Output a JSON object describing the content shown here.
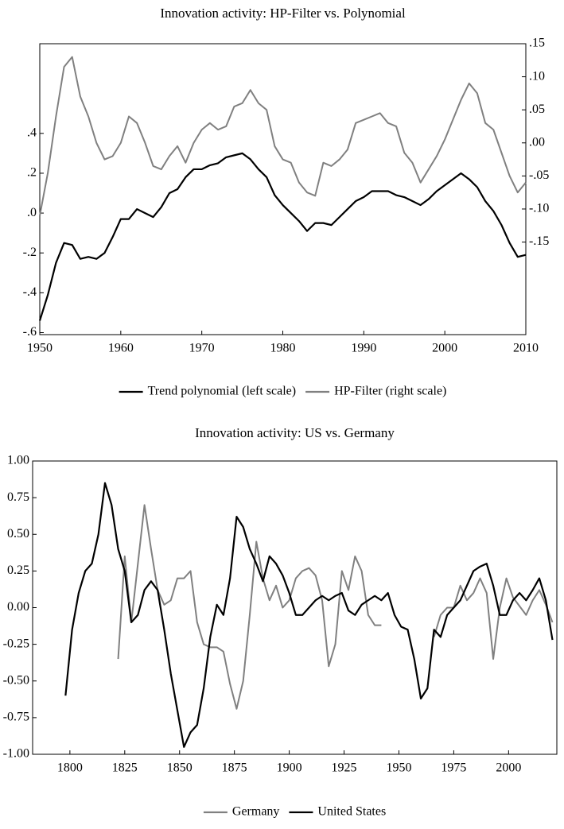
{
  "chart_data": [
    {
      "type": "line",
      "title": "Innovation activity: HP-Filter vs. Polynomial",
      "x": [
        1950,
        1951,
        1952,
        1953,
        1954,
        1955,
        1956,
        1957,
        1958,
        1959,
        1960,
        1961,
        1962,
        1963,
        1964,
        1965,
        1966,
        1967,
        1968,
        1969,
        1970,
        1971,
        1972,
        1973,
        1974,
        1975,
        1976,
        1977,
        1978,
        1979,
        1980,
        1981,
        1982,
        1983,
        1984,
        1985,
        1986,
        1987,
        1988,
        1989,
        1990,
        1991,
        1992,
        1993,
        1994,
        1995,
        1996,
        1997,
        1998,
        1999,
        2000,
        2001,
        2002,
        2003,
        2004,
        2005,
        2006,
        2007,
        2008,
        2009,
        2010
      ],
      "xlim": [
        1950,
        2010
      ],
      "xticks": [
        1950,
        1960,
        1970,
        1980,
        1990,
        2000,
        2010
      ],
      "ylim": [
        -0.61,
        0.85
      ],
      "yticks": [
        {
          "value": -0.6,
          "label": "-.6"
        },
        {
          "value": -0.4,
          "label": "-.4"
        },
        {
          "value": -0.2,
          "label": "-.2"
        },
        {
          "value": 0,
          "label": ".0"
        },
        {
          "value": 0.2,
          "label": ".2"
        },
        {
          "value": 0.4,
          "label": ".4"
        }
      ],
      "y2lim": [
        -0.29,
        0.15
      ],
      "y2ticks": [
        {
          "value": -0.15,
          "label": "-.15"
        },
        {
          "value": -0.1,
          "label": "-.10"
        },
        {
          "value": -0.05,
          "label": "-.05"
        },
        {
          "value": 0,
          "label": ".00"
        },
        {
          "value": 0.05,
          "label": ".05"
        },
        {
          "value": 0.1,
          "label": ".10"
        },
        {
          "value": 0.15,
          "label": ".15"
        }
      ],
      "grid": false,
      "legend": "bottom",
      "series": [
        {
          "name": "Trend polynomial (left scale)",
          "color": "#000000",
          "values": [
            -0.54,
            -0.41,
            -0.25,
            -0.15,
            -0.16,
            -0.23,
            -0.22,
            -0.23,
            -0.2,
            -0.12,
            -0.03,
            -0.03,
            0.02,
            0,
            -0.02,
            0.03,
            0.1,
            0.12,
            0.18,
            0.22,
            0.22,
            0.24,
            0.25,
            0.28,
            0.29,
            0.3,
            0.27,
            0.22,
            0.18,
            0.09,
            0.04,
            0,
            -0.04,
            -0.09,
            -0.05,
            -0.05,
            -0.06,
            -0.02,
            0.02,
            0.06,
            0.08,
            0.11,
            0.11,
            0.11,
            0.09,
            0.08,
            0.06,
            0.04,
            0.07,
            0.11,
            0.14,
            0.17,
            0.2,
            0.17,
            0.13,
            0.06,
            0.01,
            -0.06,
            -0.15,
            -0.22,
            -0.21
          ]
        },
        {
          "name": "HP-Filter (right scale)",
          "color": "#808080",
          "axis": "y2",
          "values": [
            -0.11,
            -0.045,
            0.04,
            0.115,
            0.13,
            0.07,
            0.04,
            0,
            -0.025,
            -0.02,
            0,
            0.04,
            0.03,
            0,
            -0.035,
            -0.04,
            -0.02,
            -0.005,
            -0.03,
            0,
            0.02,
            0.03,
            0.02,
            0.025,
            0.055,
            0.06,
            0.08,
            0.06,
            0.05,
            -0.005,
            -0.025,
            -0.03,
            -0.06,
            -0.075,
            -0.08,
            -0.03,
            -0.035,
            -0.025,
            -0.01,
            0.03,
            0.035,
            0.04,
            0.045,
            0.03,
            0.025,
            -0.015,
            -0.03,
            -0.06,
            -0.04,
            -0.02,
            0.005,
            0.035,
            0.065,
            0.09,
            0.075,
            0.03,
            0.02,
            -0.015,
            -0.05,
            -0.075,
            -0.06
          ]
        }
      ]
    },
    {
      "type": "line",
      "title": "Innovation activity: US vs. Germany",
      "x": [
        1798,
        1801,
        1804,
        1807,
        1810,
        1813,
        1816,
        1819,
        1822,
        1825,
        1828,
        1831,
        1834,
        1837,
        1840,
        1843,
        1846,
        1849,
        1852,
        1855,
        1858,
        1861,
        1864,
        1867,
        1870,
        1873,
        1876,
        1879,
        1882,
        1885,
        1888,
        1891,
        1894,
        1897,
        1900,
        1903,
        1906,
        1909,
        1912,
        1915,
        1918,
        1921,
        1924,
        1927,
        1930,
        1933,
        1936,
        1939,
        1942,
        1945,
        1948,
        1951,
        1954,
        1957,
        1960,
        1963,
        1966,
        1969,
        1972,
        1975,
        1978,
        1981,
        1984,
        1987,
        1990,
        1993,
        1996,
        1999,
        2002,
        2005,
        2008,
        2011,
        2014,
        2017,
        2020
      ],
      "xlim": [
        1783,
        2022
      ],
      "xticks": [
        1800,
        1825,
        1850,
        1875,
        1900,
        1925,
        1950,
        1975,
        2000
      ],
      "ylim": [
        -1,
        1
      ],
      "yticks": [
        {
          "value": -1,
          "label": "-1.00"
        },
        {
          "value": -0.75,
          "label": "-0.75"
        },
        {
          "value": -0.5,
          "label": "-0.50"
        },
        {
          "value": -0.25,
          "label": "-0.25"
        },
        {
          "value": 0,
          "label": "0.00"
        },
        {
          "value": 0.25,
          "label": "0.25"
        },
        {
          "value": 0.5,
          "label": "0.50"
        },
        {
          "value": 0.75,
          "label": "0.75"
        },
        {
          "value": 1,
          "label": "1.00"
        }
      ],
      "grid": false,
      "legend": "bottom",
      "series": [
        {
          "name": "Germany",
          "color": "#808080",
          "values": [
            null,
            null,
            null,
            null,
            null,
            null,
            null,
            null,
            -0.35,
            0.35,
            -0.1,
            0.3,
            0.7,
            0.4,
            0.12,
            0.02,
            0.05,
            0.2,
            0.2,
            0.25,
            -0.1,
            -0.25,
            -0.27,
            -0.27,
            -0.3,
            -0.52,
            -0.69,
            -0.5,
            -0.05,
            0.45,
            0.2,
            0.05,
            0.15,
            0,
            0.05,
            0.2,
            0.25,
            0.27,
            0.22,
            0.05,
            -0.4,
            -0.25,
            0.25,
            0.12,
            0.35,
            0.25,
            -0.05,
            -0.12,
            -0.12,
            null,
            null,
            null,
            null,
            null,
            null,
            null,
            -0.2,
            -0.05,
            0,
            0,
            0.15,
            0.05,
            0.1,
            0.2,
            0.1,
            -0.35,
            0,
            0.2,
            0.07,
            0.01,
            -0.05,
            0.05,
            0.12,
            0.02,
            -0.1
          ]
        },
        {
          "name": "United States",
          "color": "#000000",
          "values": [
            -0.6,
            -0.15,
            0.1,
            0.25,
            0.3,
            0.5,
            0.85,
            0.7,
            0.4,
            0.25,
            -0.1,
            -0.05,
            0.12,
            0.18,
            0.12,
            -0.15,
            -0.45,
            -0.7,
            -0.95,
            -0.85,
            -0.8,
            -0.55,
            -0.2,
            0.02,
            -0.05,
            0.2,
            0.62,
            0.55,
            0.4,
            0.3,
            0.18,
            0.35,
            0.3,
            0.22,
            0.1,
            -0.05,
            -0.05,
            0,
            0.05,
            0.08,
            0.05,
            0.08,
            0.1,
            -0.02,
            -0.05,
            0.02,
            0.05,
            0.08,
            0.05,
            0.1,
            -0.05,
            -0.13,
            -0.15,
            -0.35,
            -0.62,
            -0.55,
            -0.15,
            -0.2,
            -0.05,
            0,
            0.05,
            0.15,
            0.25,
            0.28,
            0.3,
            0.15,
            -0.05,
            -0.05,
            0.05,
            0.1,
            0.05,
            0.12,
            0.2,
            0.05,
            -0.22
          ]
        }
      ]
    }
  ]
}
